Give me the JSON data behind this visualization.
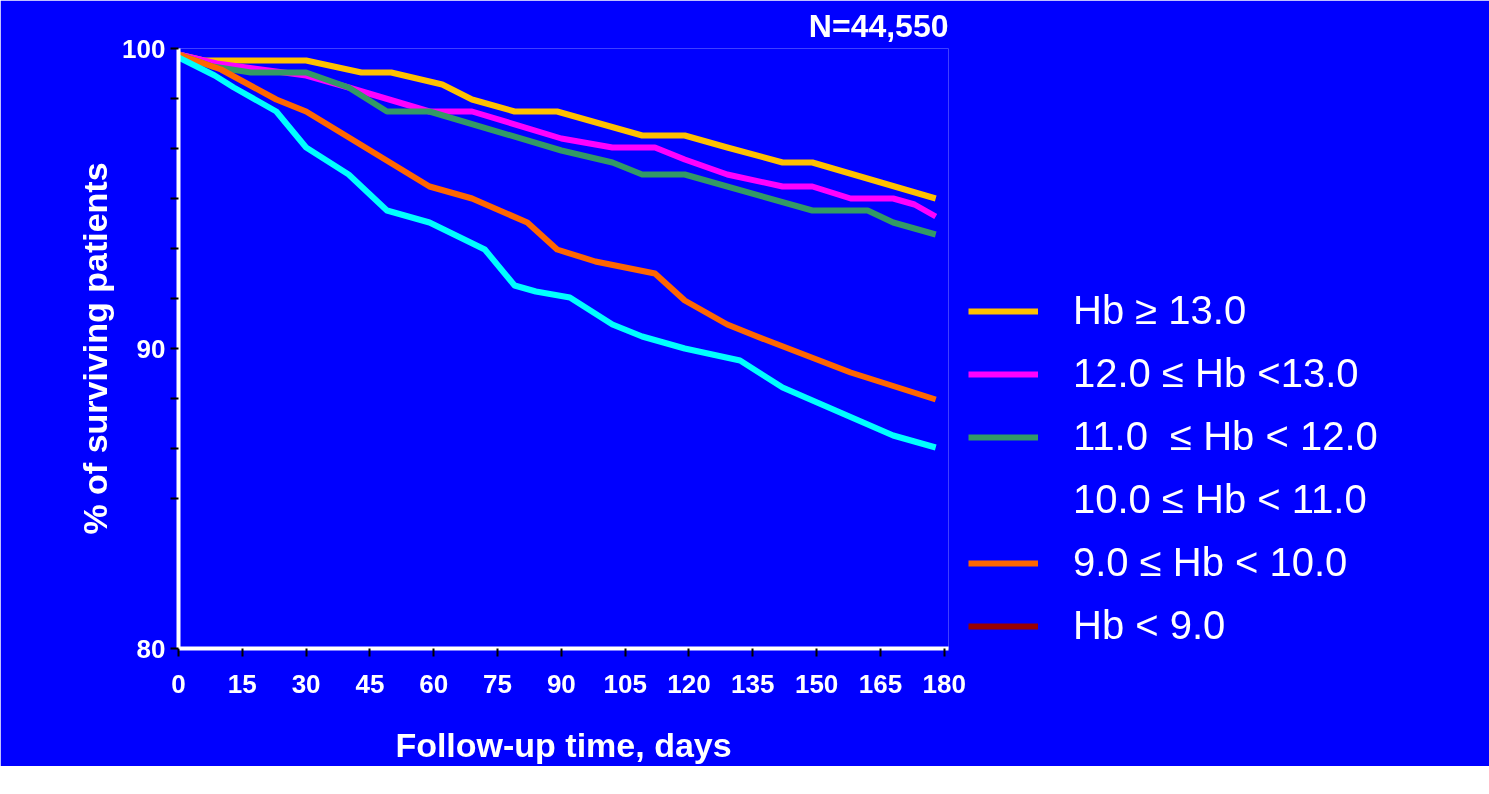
{
  "chart_data": {
    "type": "line",
    "xlabel": "Follow-up time, days",
    "ylabel": "% of surviving patients",
    "annotations": [
      "N=44,550"
    ],
    "xlim": [
      0,
      181
    ],
    "ylim": [
      80,
      100
    ],
    "xticks": [
      0,
      15,
      30,
      45,
      60,
      75,
      90,
      105,
      120,
      135,
      150,
      165,
      180
    ],
    "yticks": [
      100,
      {
        "value": 98.33,
        "label": null
      },
      {
        "value": 96.67,
        "label": null
      },
      {
        "value": 95,
        "label": null
      },
      {
        "value": 93.33,
        "label": null
      },
      {
        "value": 91.67,
        "label": null
      },
      90,
      {
        "value": 88.33,
        "label": null
      },
      {
        "value": 86.67,
        "label": null
      },
      {
        "value": 85,
        "label": null
      },
      80
    ],
    "legend": "right",
    "grid": false,
    "line_style": "solid",
    "marker": "none",
    "series": [
      {
        "name": "Hb ≥ 13.0",
        "color": "#ffc000",
        "x": [
          0,
          6,
          30,
          43,
          50,
          62,
          69,
          79,
          89,
          109,
          119,
          129,
          142,
          149,
          178
        ],
        "values": [
          99.8,
          99.6,
          99.6,
          99.2,
          99.2,
          98.8,
          98.3,
          97.9,
          97.9,
          97.1,
          97.1,
          96.7,
          96.2,
          96.2,
          95.0
        ]
      },
      {
        "name": "12.0 ≤ Hb <13.0",
        "color": "#ff00ff",
        "x": [
          0,
          9,
          30,
          40,
          59,
          69,
          90,
          102,
          112,
          119,
          129,
          142,
          149,
          158,
          168,
          173,
          178
        ],
        "values": [
          99.8,
          99.5,
          99.1,
          98.7,
          97.9,
          97.9,
          97.0,
          96.7,
          96.7,
          96.3,
          95.8,
          95.4,
          95.4,
          95.0,
          95.0,
          94.8,
          94.4
        ]
      },
      {
        "name": "11.0  ≤ Hb < 12.0",
        "color": "#339966",
        "x": [
          0,
          8,
          17,
          30,
          40,
          49,
          59,
          90,
          102,
          109,
          119,
          149,
          162,
          168,
          178
        ],
        "values": [
          99.8,
          99.4,
          99.2,
          99.2,
          98.7,
          97.9,
          97.9,
          96.6,
          96.2,
          95.8,
          95.8,
          94.6,
          94.6,
          94.2,
          93.8
        ]
      },
      {
        "name": "10.0 ≤ Hb < 11.0"
      },
      {
        "name": "9.0 ≤ Hb < 10.0",
        "color": "#ff6600",
        "x": [
          0,
          8,
          10,
          23,
          30,
          59,
          69,
          82,
          89,
          98,
          112,
          119,
          129,
          136,
          158,
          178
        ],
        "values": [
          99.8,
          99.4,
          99.3,
          98.3,
          97.9,
          95.4,
          95.0,
          94.2,
          93.3,
          92.9,
          92.5,
          91.6,
          90.8,
          90.4,
          89.2,
          88.3
        ]
      },
      {
        "name": "Hb < 9.0",
        "color": "#990000"
      },
      {
        "color": "#00ffff",
        "x": [
          0,
          8.5,
          13,
          23,
          30,
          40,
          49,
          59,
          72,
          79,
          84,
          92,
          102,
          109,
          119,
          132,
          142,
          168,
          178
        ],
        "values": [
          99.7,
          99.1,
          98.7,
          97.9,
          96.7,
          95.8,
          94.6,
          94.2,
          93.3,
          92.1,
          91.9,
          91.7,
          90.8,
          90.4,
          90.0,
          89.6,
          88.7,
          87.1,
          86.7
        ]
      }
    ]
  }
}
